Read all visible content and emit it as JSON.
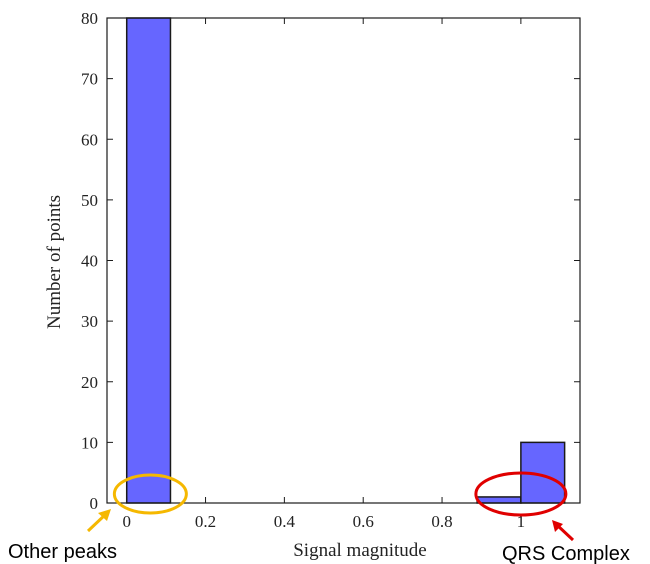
{
  "chart_data": {
    "type": "bar",
    "bins": [
      {
        "x0": 0,
        "x1": 0.111,
        "value": 80
      },
      {
        "x0": 0.111,
        "x1": 0.222,
        "value": 0
      },
      {
        "x0": 0.222,
        "x1": 0.333,
        "value": 0
      },
      {
        "x0": 0.333,
        "x1": 0.444,
        "value": 0
      },
      {
        "x0": 0.444,
        "x1": 0.556,
        "value": 0
      },
      {
        "x0": 0.556,
        "x1": 0.667,
        "value": 0
      },
      {
        "x0": 0.667,
        "x1": 0.778,
        "value": 0
      },
      {
        "x0": 0.778,
        "x1": 0.889,
        "value": 0
      },
      {
        "x0": 0.889,
        "x1": 1.0,
        "value": 1
      },
      {
        "x0": 1.0,
        "x1": 1.111,
        "value": 10
      }
    ],
    "xlabel": "Signal magnitude",
    "ylabel": "Number of points",
    "xlim": [
      -0.05,
      1.15
    ],
    "ylim": [
      0,
      80
    ],
    "xticks": [
      "0",
      "0.2",
      "0.4",
      "0.6",
      "0.8",
      "1"
    ],
    "xtick_values": [
      0,
      0.2,
      0.4,
      0.6,
      0.8,
      1.0
    ],
    "yticks": [
      "0",
      "10",
      "20",
      "30",
      "40",
      "50",
      "60",
      "70",
      "80"
    ],
    "ytick_values": [
      0,
      10,
      20,
      30,
      40,
      50,
      60,
      70,
      80
    ],
    "grid": false,
    "bar_color": "#6666ff",
    "annotations": [
      {
        "label": "Other peaks",
        "color": "#f5b800",
        "target_x": 0.06
      },
      {
        "label": "QRS Complex",
        "color": "#e00000",
        "target_x": 1.0
      }
    ]
  }
}
